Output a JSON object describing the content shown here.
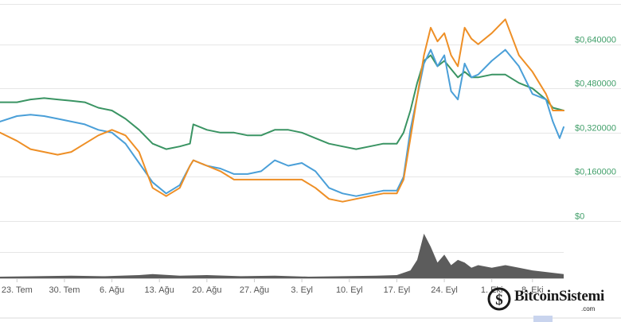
{
  "chart_data": {
    "type": "line",
    "y_ticks": [
      {
        "value": 0,
        "label": "$0"
      },
      {
        "value": 0.16,
        "label": "$0,160000"
      },
      {
        "value": 0.32,
        "label": "$0,320000"
      },
      {
        "value": 0.48,
        "label": "$0,480000"
      },
      {
        "value": 0.64,
        "label": "$0,640000"
      }
    ],
    "ylim": [
      0,
      0.8
    ],
    "x_ticks": [
      {
        "day": 2,
        "label": "23. Tem"
      },
      {
        "day": 9,
        "label": "30. Tem"
      },
      {
        "day": 16,
        "label": "6. Ağu"
      },
      {
        "day": 23,
        "label": "13. Ağu"
      },
      {
        "day": 30,
        "label": "20. Ağu"
      },
      {
        "day": 37,
        "label": "27. Ağu"
      },
      {
        "day": 44,
        "label": "3. Eyl"
      },
      {
        "day": 51,
        "label": "10. Eyl"
      },
      {
        "day": 58,
        "label": "17. Eyl"
      },
      {
        "day": 65,
        "label": "24. Eyl"
      },
      {
        "day": 72,
        "label": "1. Eki"
      },
      {
        "day": 78,
        "label": "8. Eki"
      }
    ],
    "xlim": [
      -0.5,
      82.6
    ],
    "grid": true,
    "series": [
      {
        "color": "#3a9463",
        "points": [
          [
            -0.5,
            0.43
          ],
          [
            2,
            0.43
          ],
          [
            4,
            0.44
          ],
          [
            6,
            0.445
          ],
          [
            8,
            0.44
          ],
          [
            10,
            0.435
          ],
          [
            12,
            0.43
          ],
          [
            14,
            0.41
          ],
          [
            16,
            0.4
          ],
          [
            18,
            0.37
          ],
          [
            20,
            0.33
          ],
          [
            22,
            0.28
          ],
          [
            24,
            0.26
          ],
          [
            26,
            0.27
          ],
          [
            27.5,
            0.28
          ],
          [
            28,
            0.35
          ],
          [
            30,
            0.33
          ],
          [
            32,
            0.32
          ],
          [
            34,
            0.32
          ],
          [
            36,
            0.31
          ],
          [
            38,
            0.31
          ],
          [
            40,
            0.33
          ],
          [
            42,
            0.33
          ],
          [
            44,
            0.32
          ],
          [
            46,
            0.3
          ],
          [
            48,
            0.28
          ],
          [
            50,
            0.27
          ],
          [
            52,
            0.26
          ],
          [
            54,
            0.27
          ],
          [
            56,
            0.28
          ],
          [
            58,
            0.28
          ],
          [
            59,
            0.32
          ],
          [
            60,
            0.4
          ],
          [
            61,
            0.5
          ],
          [
            62,
            0.58
          ],
          [
            63,
            0.6
          ],
          [
            64,
            0.56
          ],
          [
            65,
            0.58
          ],
          [
            66,
            0.55
          ],
          [
            67,
            0.52
          ],
          [
            68,
            0.54
          ],
          [
            69,
            0.52
          ],
          [
            70,
            0.52
          ],
          [
            72,
            0.53
          ],
          [
            74,
            0.53
          ],
          [
            76,
            0.5
          ],
          [
            78,
            0.48
          ],
          [
            80,
            0.44
          ],
          [
            81,
            0.41
          ],
          [
            82.6,
            0.4
          ]
        ]
      },
      {
        "color": "#4a9fd8",
        "points": [
          [
            -0.5,
            0.36
          ],
          [
            2,
            0.38
          ],
          [
            4,
            0.385
          ],
          [
            6,
            0.38
          ],
          [
            8,
            0.37
          ],
          [
            10,
            0.36
          ],
          [
            12,
            0.35
          ],
          [
            14,
            0.33
          ],
          [
            16,
            0.32
          ],
          [
            18,
            0.28
          ],
          [
            20,
            0.21
          ],
          [
            22,
            0.14
          ],
          [
            24,
            0.1
          ],
          [
            26,
            0.13
          ],
          [
            27.5,
            0.2
          ],
          [
            28,
            0.22
          ],
          [
            30,
            0.2
          ],
          [
            32,
            0.19
          ],
          [
            34,
            0.17
          ],
          [
            36,
            0.17
          ],
          [
            38,
            0.18
          ],
          [
            40,
            0.22
          ],
          [
            42,
            0.2
          ],
          [
            44,
            0.21
          ],
          [
            46,
            0.18
          ],
          [
            48,
            0.12
          ],
          [
            50,
            0.1
          ],
          [
            52,
            0.09
          ],
          [
            54,
            0.1
          ],
          [
            56,
            0.11
          ],
          [
            58,
            0.11
          ],
          [
            59,
            0.16
          ],
          [
            60,
            0.33
          ],
          [
            61,
            0.45
          ],
          [
            62,
            0.57
          ],
          [
            63,
            0.62
          ],
          [
            64,
            0.56
          ],
          [
            65,
            0.6
          ],
          [
            66,
            0.47
          ],
          [
            67,
            0.44
          ],
          [
            68,
            0.57
          ],
          [
            69,
            0.52
          ],
          [
            70,
            0.53
          ],
          [
            72,
            0.58
          ],
          [
            74,
            0.62
          ],
          [
            76,
            0.56
          ],
          [
            78,
            0.46
          ],
          [
            80,
            0.44
          ],
          [
            81,
            0.36
          ],
          [
            82,
            0.3
          ],
          [
            82.6,
            0.34
          ]
        ]
      },
      {
        "color": "#ee8f26",
        "points": [
          [
            -0.5,
            0.32
          ],
          [
            2,
            0.29
          ],
          [
            4,
            0.26
          ],
          [
            6,
            0.25
          ],
          [
            8,
            0.24
          ],
          [
            10,
            0.25
          ],
          [
            12,
            0.28
          ],
          [
            14,
            0.31
          ],
          [
            16,
            0.33
          ],
          [
            18,
            0.31
          ],
          [
            20,
            0.25
          ],
          [
            22,
            0.12
          ],
          [
            24,
            0.09
          ],
          [
            26,
            0.12
          ],
          [
            27.5,
            0.2
          ],
          [
            28,
            0.22
          ],
          [
            30,
            0.2
          ],
          [
            32,
            0.18
          ],
          [
            34,
            0.15
          ],
          [
            36,
            0.15
          ],
          [
            38,
            0.15
          ],
          [
            40,
            0.15
          ],
          [
            42,
            0.15
          ],
          [
            44,
            0.15
          ],
          [
            46,
            0.12
          ],
          [
            48,
            0.08
          ],
          [
            50,
            0.07
          ],
          [
            52,
            0.08
          ],
          [
            54,
            0.09
          ],
          [
            56,
            0.1
          ],
          [
            58,
            0.1
          ],
          [
            59,
            0.15
          ],
          [
            60,
            0.3
          ],
          [
            61,
            0.45
          ],
          [
            62,
            0.6
          ],
          [
            63,
            0.7
          ],
          [
            64,
            0.65
          ],
          [
            65,
            0.68
          ],
          [
            66,
            0.6
          ],
          [
            67,
            0.56
          ],
          [
            68,
            0.7
          ],
          [
            69,
            0.66
          ],
          [
            70,
            0.64
          ],
          [
            72,
            0.68
          ],
          [
            74,
            0.73
          ],
          [
            76,
            0.6
          ],
          [
            78,
            0.54
          ],
          [
            80,
            0.46
          ],
          [
            81,
            0.4
          ],
          [
            82.6,
            0.4
          ]
        ]
      }
    ],
    "volume": {
      "color": "#5c5c5c",
      "points": [
        [
          -0.5,
          0.03
        ],
        [
          5,
          0.04
        ],
        [
          10,
          0.05
        ],
        [
          15,
          0.04
        ],
        [
          20,
          0.06
        ],
        [
          22,
          0.08
        ],
        [
          26,
          0.05
        ],
        [
          30,
          0.06
        ],
        [
          35,
          0.04
        ],
        [
          40,
          0.05
        ],
        [
          45,
          0.03
        ],
        [
          50,
          0.04
        ],
        [
          55,
          0.05
        ],
        [
          58,
          0.06
        ],
        [
          60,
          0.15
        ],
        [
          61,
          0.35
        ],
        [
          62,
          0.85
        ],
        [
          63,
          0.6
        ],
        [
          64,
          0.3
        ],
        [
          65,
          0.45
        ],
        [
          66,
          0.25
        ],
        [
          67,
          0.35
        ],
        [
          68,
          0.3
        ],
        [
          69,
          0.2
        ],
        [
          70,
          0.25
        ],
        [
          72,
          0.2
        ],
        [
          74,
          0.25
        ],
        [
          76,
          0.2
        ],
        [
          78,
          0.15
        ],
        [
          80,
          0.12
        ],
        [
          82.6,
          0.08
        ]
      ]
    }
  },
  "watermark": {
    "brand": "BitcoinSistemi",
    "domain": ".com"
  }
}
